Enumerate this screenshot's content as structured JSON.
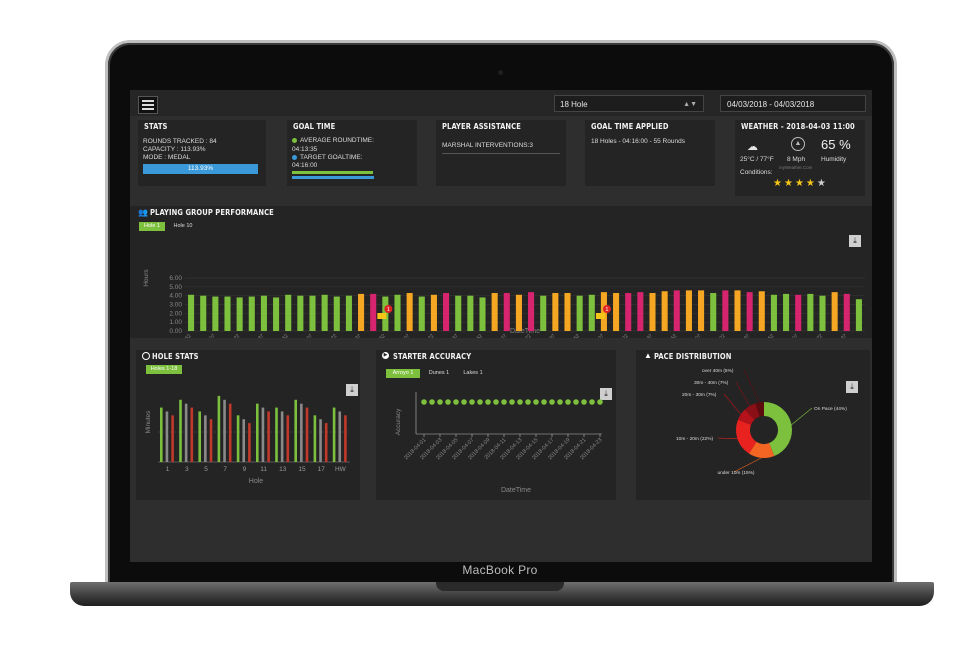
{
  "device": {
    "bezel_label": "MacBook Pro"
  },
  "topbar": {
    "course_select": "18 Hole",
    "date_range": "04/03/2018 - 04/03/2018"
  },
  "stats": {
    "title": "STATS",
    "rounds": "ROUNDS TRACKED : 84",
    "capacity": "CAPACITY : 113.93%",
    "mode": "MODE : MEDAL",
    "bar_label": "113.93%",
    "capacity_fill": 1.0
  },
  "goal_time": {
    "title": "GOAL TIME",
    "avg_label": "AVERAGE ROUNDTIME:",
    "avg_value": "04:13:35",
    "target_label": "TARGET GOALTIME:",
    "target_value": "04:16:00",
    "colors": {
      "avg": "#7cc03d",
      "target": "#3a9ad9"
    }
  },
  "player_assistance": {
    "title": "PLAYER ASSISTANCE",
    "marshal": "MARSHAL INTERVENTIONS:3"
  },
  "goal_time_applied": {
    "title": "GOAL TIME APPLIED",
    "line": "18 Holes - 04:16:00 - 55 Rounds"
  },
  "weather": {
    "title": "WEATHER - 2018-04-03 11:00",
    "humidity_value": "65 %",
    "temp": "25°C / 77°F",
    "wind": "8 Mph",
    "humidity_label": "Humidity",
    "conditions_label": "Conditions:",
    "source": "myWeather.Com",
    "rating": 4,
    "rating_max": 5
  },
  "performance": {
    "title": "PLAYING GROUP PERFORMANCE",
    "tabs": [
      "Hole 1",
      "Hole 10"
    ],
    "ylabel": "Hours",
    "xlabel": "DateTime"
  },
  "hole_stats": {
    "title": "HOLE STATS",
    "tab": "Holes 1-18",
    "ylabel": "Minutes",
    "xlabel": "Hole"
  },
  "starter": {
    "title": "STARTER ACCURACY",
    "tabs": [
      "Arroyo 1",
      "Dunes 1",
      "Lakes 1"
    ],
    "ylabel": "Accuracy",
    "xlabel": "DateTime"
  },
  "pace": {
    "title": "PACE DISTRIBUTION"
  },
  "chart_data": [
    {
      "type": "bar",
      "name": "performance",
      "yticks": [
        "0.00",
        "1.00",
        "2.00",
        "3.00",
        "4.00",
        "5.00",
        "6.00"
      ],
      "ylim": [
        0,
        6
      ],
      "colors": {
        "green": "#7cc03d",
        "orange": "#f5a623",
        "pink": "#d6246e"
      },
      "series_colors": [
        "green",
        "green",
        "green",
        "green",
        "green",
        "green",
        "green",
        "green",
        "green",
        "green",
        "green",
        "green",
        "green",
        "green",
        "orange",
        "pink",
        "green",
        "green",
        "orange",
        "green",
        "orange",
        "pink",
        "green",
        "green",
        "green",
        "orange",
        "pink",
        "orange",
        "pink",
        "green",
        "orange",
        "orange",
        "green",
        "green",
        "orange",
        "orange",
        "pink",
        "pink",
        "orange",
        "orange",
        "pink",
        "orange",
        "orange",
        "green",
        "pink",
        "orange",
        "pink",
        "orange",
        "green",
        "green",
        "pink",
        "green",
        "green",
        "orange",
        "pink",
        "green"
      ],
      "values": [
        4.1,
        4.0,
        3.9,
        3.9,
        3.8,
        3.9,
        4.0,
        3.8,
        4.1,
        4.0,
        4.0,
        4.1,
        3.9,
        4.0,
        4.2,
        4.2,
        3.9,
        4.1,
        4.3,
        3.9,
        4.1,
        4.3,
        4.0,
        4.0,
        3.8,
        4.3,
        4.3,
        4.1,
        4.4,
        4.0,
        4.3,
        4.3,
        4.0,
        4.1,
        4.4,
        4.3,
        4.3,
        4.4,
        4.3,
        4.5,
        4.6,
        4.6,
        4.6,
        4.3,
        4.6,
        4.6,
        4.4,
        4.5,
        4.1,
        4.2,
        4.1,
        4.2,
        4.0,
        4.4,
        4.2,
        3.6
      ],
      "x_tick_labels": [
        "07:52",
        "07:59",
        "08:07",
        "08:15",
        "08:22",
        "08:30",
        "08:37",
        "08:45",
        "08:52",
        "09:00",
        "09:07",
        "09:15",
        "09:22",
        "09:30",
        "09:37",
        "09:45",
        "09:52",
        "10:00",
        "10:07",
        "10:15",
        "10:22",
        "10:30",
        "10:37",
        "10:45",
        "10:52",
        "11:00",
        "11:07",
        "11:15",
        "11:22",
        "11:30",
        "11:37",
        "11:45",
        "11:52",
        "12:00",
        "12:07",
        "12:15",
        "12:22",
        "12:30",
        "12:37",
        "12:45",
        "12:52",
        "13:00",
        "13:07",
        "13:15",
        "13:22",
        "13:30",
        "13:37",
        "13:45",
        "13:52",
        "14:00",
        "14:07",
        "14:15",
        "14:22",
        "14:30",
        "14:37",
        "14:45"
      ],
      "markers": [
        {
          "index": 16,
          "count": "1"
        },
        {
          "index": 34,
          "count": "1"
        }
      ]
    },
    {
      "type": "bar",
      "name": "hole_stats",
      "x_tick_labels": [
        "1",
        "3",
        "5",
        "7",
        "9",
        "11",
        "13",
        "15",
        "17",
        "HW"
      ],
      "series": [
        {
          "color": "#7cc03d",
          "values": [
            14,
            16,
            13,
            17,
            12,
            15,
            14,
            16,
            12,
            14
          ]
        },
        {
          "color": "#8a8a8a",
          "values": [
            13,
            15,
            12,
            16,
            11,
            14,
            13,
            15,
            11,
            13
          ]
        },
        {
          "color": "#c0392b",
          "values": [
            12,
            14,
            11,
            15,
            10,
            13,
            12,
            14,
            10,
            12
          ]
        }
      ]
    },
    {
      "type": "scatter",
      "name": "starter_accuracy",
      "color": "#7cc03d",
      "values": [
        100,
        100,
        100,
        100,
        100,
        100,
        100,
        100,
        100,
        100,
        100,
        100,
        100,
        100,
        100,
        100,
        100,
        100,
        100,
        100,
        100,
        100,
        100
      ],
      "x_tick_labels": [
        "2018-04-01",
        "2018-04-03",
        "2018-04-05",
        "2018-04-07",
        "2018-04-09",
        "2018-04-11",
        "2018-04-13",
        "2018-04-15",
        "2018-04-17",
        "2018-04-19",
        "2018-04-21",
        "2018-04-23"
      ]
    },
    {
      "type": "pie",
      "name": "pace_distribution",
      "slices": [
        {
          "label": "On Pace (44%)",
          "value": 44,
          "color": "#7cc03d"
        },
        {
          "label": "under 10m (15%)",
          "value": 15,
          "color": "#f26522"
        },
        {
          "label": "10m - 20m (22%)",
          "value": 22,
          "color": "#e8231f"
        },
        {
          "label": "20m - 30m (7%)",
          "value": 7,
          "color": "#b5121b"
        },
        {
          "label": "30m - 40m (7%)",
          "value": 7,
          "color": "#8b0f16"
        },
        {
          "label": "over 40m (5%)",
          "value": 5,
          "color": "#5e0b10"
        }
      ]
    }
  ]
}
